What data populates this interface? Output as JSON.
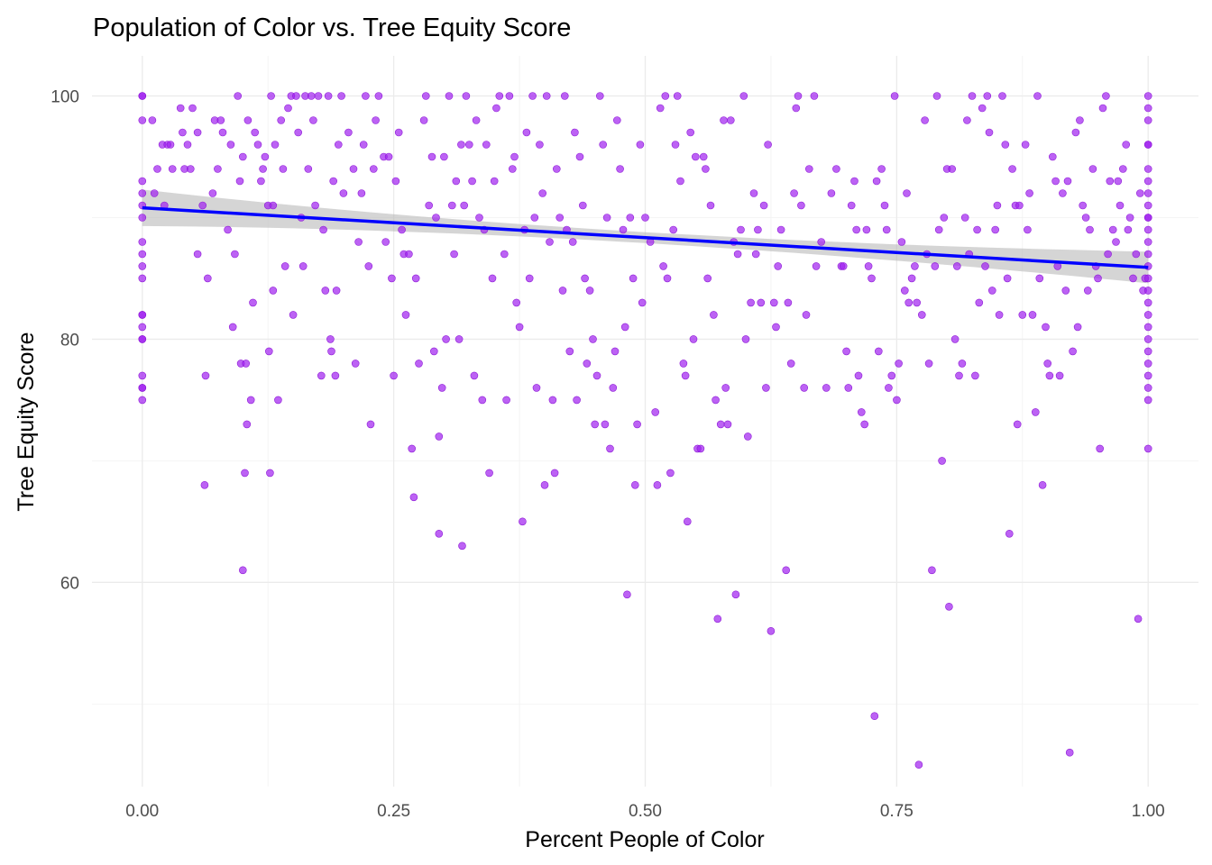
{
  "chart_data": {
    "type": "scatter",
    "title": "Population of Color vs. Tree Equity Score",
    "xlabel": "Percent People of Color",
    "ylabel": "Tree Equity Score",
    "xlim": [
      -0.05,
      1.05
    ],
    "ylim": [
      43.2,
      103.3
    ],
    "x_major_ticks": [
      0.0,
      0.25,
      0.5,
      0.75,
      1.0
    ],
    "x_tick_labels": [
      "0.00",
      "0.25",
      "0.50",
      "0.75",
      "1.00"
    ],
    "x_minor_ticks": [
      0.125,
      0.375,
      0.625,
      0.875
    ],
    "y_major_ticks": [
      60,
      80,
      100
    ],
    "y_tick_labels": [
      "60",
      "80",
      "100"
    ],
    "y_minor_ticks": [
      50,
      70,
      90
    ],
    "grid": true,
    "point_color": "#a020f0",
    "point_opacity": 0.7,
    "trend_line": {
      "method": "linear",
      "color": "#0000ff",
      "x": [
        0.0,
        1.0
      ],
      "y": [
        90.8,
        85.9
      ],
      "ci_lower": [
        89.3,
        84.6
      ],
      "ci_upper": [
        92.3,
        87.2
      ],
      "ci_mid_width": 0.9,
      "ci_color": "#b3b3b3"
    },
    "points": [
      [
        0,
        100
      ],
      [
        0,
        100
      ],
      [
        0,
        98
      ],
      [
        0,
        93
      ],
      [
        0,
        92
      ],
      [
        0,
        91
      ],
      [
        0,
        90
      ],
      [
        0,
        88
      ],
      [
        0,
        87
      ],
      [
        0,
        86
      ],
      [
        0,
        85
      ],
      [
        0,
        82
      ],
      [
        0,
        82
      ],
      [
        0,
        81
      ],
      [
        0,
        80
      ],
      [
        0,
        80
      ],
      [
        0,
        77
      ],
      [
        0,
        76
      ],
      [
        0,
        76
      ],
      [
        0,
        75
      ],
      [
        0.01,
        98
      ],
      [
        0.012,
        92
      ],
      [
        0.015,
        94
      ],
      [
        0.02,
        96
      ],
      [
        0.022,
        91
      ],
      [
        0.025,
        96
      ],
      [
        0.028,
        96
      ],
      [
        0.03,
        94
      ],
      [
        0.038,
        99
      ],
      [
        0.04,
        97
      ],
      [
        0.042,
        94
      ],
      [
        0.045,
        96
      ],
      [
        0.048,
        94
      ],
      [
        0.05,
        99
      ],
      [
        0.055,
        97
      ],
      [
        0.055,
        87
      ],
      [
        0.06,
        91
      ],
      [
        0.062,
        68
      ],
      [
        0.063,
        77
      ],
      [
        0.065,
        85
      ],
      [
        0.07,
        92
      ],
      [
        0.072,
        98
      ],
      [
        0.075,
        94
      ],
      [
        0.078,
        98
      ],
      [
        0.08,
        97
      ],
      [
        0.085,
        89
      ],
      [
        0.088,
        96
      ],
      [
        0.09,
        81
      ],
      [
        0.092,
        87
      ],
      [
        0.095,
        100
      ],
      [
        0.097,
        93
      ],
      [
        0.098,
        78
      ],
      [
        0.1,
        95
      ],
      [
        0.1,
        61
      ],
      [
        0.102,
        69
      ],
      [
        0.103,
        78
      ],
      [
        0.104,
        73
      ],
      [
        0.105,
        98
      ],
      [
        0.108,
        75
      ],
      [
        0.11,
        83
      ],
      [
        0.112,
        97
      ],
      [
        0.115,
        96
      ],
      [
        0.118,
        93
      ],
      [
        0.12,
        94
      ],
      [
        0.122,
        95
      ],
      [
        0.125,
        91
      ],
      [
        0.126,
        79
      ],
      [
        0.127,
        69
      ],
      [
        0.128,
        100
      ],
      [
        0.13,
        84
      ],
      [
        0.13,
        91
      ],
      [
        0.132,
        96
      ],
      [
        0.135,
        75
      ],
      [
        0.138,
        98
      ],
      [
        0.14,
        94
      ],
      [
        0.142,
        86
      ],
      [
        0.145,
        99
      ],
      [
        0.148,
        100
      ],
      [
        0.15,
        82
      ],
      [
        0.153,
        100
      ],
      [
        0.155,
        97
      ],
      [
        0.158,
        90
      ],
      [
        0.16,
        86
      ],
      [
        0.162,
        100
      ],
      [
        0.165,
        94
      ],
      [
        0.168,
        100
      ],
      [
        0.17,
        98
      ],
      [
        0.172,
        91
      ],
      [
        0.175,
        100
      ],
      [
        0.178,
        77
      ],
      [
        0.18,
        89
      ],
      [
        0.182,
        84
      ],
      [
        0.185,
        100
      ],
      [
        0.187,
        80
      ],
      [
        0.188,
        79
      ],
      [
        0.19,
        93
      ],
      [
        0.192,
        77
      ],
      [
        0.193,
        84
      ],
      [
        0.195,
        96
      ],
      [
        0.198,
        100
      ],
      [
        0.2,
        92
      ],
      [
        0.205,
        97
      ],
      [
        0.21,
        94
      ],
      [
        0.212,
        78
      ],
      [
        0.215,
        88
      ],
      [
        0.218,
        92
      ],
      [
        0.22,
        96
      ],
      [
        0.222,
        100
      ],
      [
        0.225,
        86
      ],
      [
        0.227,
        73
      ],
      [
        0.23,
        94
      ],
      [
        0.232,
        98
      ],
      [
        0.235,
        100
      ],
      [
        0.24,
        95
      ],
      [
        0.242,
        88
      ],
      [
        0.245,
        95
      ],
      [
        0.248,
        85
      ],
      [
        0.25,
        77
      ],
      [
        0.252,
        93
      ],
      [
        0.255,
        97
      ],
      [
        0.258,
        89
      ],
      [
        0.26,
        87
      ],
      [
        0.262,
        82
      ],
      [
        0.265,
        87
      ],
      [
        0.268,
        71
      ],
      [
        0.27,
        67
      ],
      [
        0.272,
        85
      ],
      [
        0.275,
        78
      ],
      [
        0.28,
        98
      ],
      [
        0.282,
        100
      ],
      [
        0.285,
        91
      ],
      [
        0.288,
        95
      ],
      [
        0.29,
        79
      ],
      [
        0.292,
        90
      ],
      [
        0.295,
        64
      ],
      [
        0.295,
        72
      ],
      [
        0.298,
        76
      ],
      [
        0.3,
        95
      ],
      [
        0.302,
        80
      ],
      [
        0.305,
        100
      ],
      [
        0.308,
        91
      ],
      [
        0.31,
        87
      ],
      [
        0.312,
        93
      ],
      [
        0.315,
        80
      ],
      [
        0.317,
        96
      ],
      [
        0.318,
        63
      ],
      [
        0.32,
        91
      ],
      [
        0.322,
        100
      ],
      [
        0.325,
        96
      ],
      [
        0.328,
        93
      ],
      [
        0.33,
        77
      ],
      [
        0.332,
        98
      ],
      [
        0.335,
        90
      ],
      [
        0.338,
        75
      ],
      [
        0.34,
        89
      ],
      [
        0.342,
        96
      ],
      [
        0.345,
        69
      ],
      [
        0.348,
        85
      ],
      [
        0.35,
        93
      ],
      [
        0.352,
        99
      ],
      [
        0.355,
        100
      ],
      [
        0.36,
        87
      ],
      [
        0.362,
        75
      ],
      [
        0.365,
        100
      ],
      [
        0.368,
        94
      ],
      [
        0.37,
        95
      ],
      [
        0.372,
        83
      ],
      [
        0.375,
        81
      ],
      [
        0.378,
        65
      ],
      [
        0.38,
        89
      ],
      [
        0.382,
        97
      ],
      [
        0.385,
        85
      ],
      [
        0.388,
        100
      ],
      [
        0.39,
        90
      ],
      [
        0.392,
        76
      ],
      [
        0.395,
        96
      ],
      [
        0.398,
        92
      ],
      [
        0.4,
        68
      ],
      [
        0.402,
        100
      ],
      [
        0.405,
        88
      ],
      [
        0.408,
        75
      ],
      [
        0.41,
        69
      ],
      [
        0.412,
        94
      ],
      [
        0.415,
        90
      ],
      [
        0.418,
        84
      ],
      [
        0.42,
        100
      ],
      [
        0.422,
        89
      ],
      [
        0.425,
        79
      ],
      [
        0.428,
        88
      ],
      [
        0.43,
        97
      ],
      [
        0.432,
        75
      ],
      [
        0.435,
        95
      ],
      [
        0.438,
        91
      ],
      [
        0.44,
        85
      ],
      [
        0.442,
        78
      ],
      [
        0.445,
        84
      ],
      [
        0.448,
        80
      ],
      [
        0.45,
        73
      ],
      [
        0.452,
        77
      ],
      [
        0.455,
        100
      ],
      [
        0.458,
        96
      ],
      [
        0.46,
        73
      ],
      [
        0.462,
        90
      ],
      [
        0.465,
        71
      ],
      [
        0.468,
        76
      ],
      [
        0.47,
        79
      ],
      [
        0.472,
        98
      ],
      [
        0.475,
        94
      ],
      [
        0.478,
        89
      ],
      [
        0.48,
        81
      ],
      [
        0.482,
        59
      ],
      [
        0.485,
        90
      ],
      [
        0.488,
        85
      ],
      [
        0.49,
        68
      ],
      [
        0.492,
        73
      ],
      [
        0.495,
        96
      ],
      [
        0.497,
        83
      ],
      [
        0.5,
        90
      ],
      [
        0.505,
        88
      ],
      [
        0.51,
        74
      ],
      [
        0.512,
        68
      ],
      [
        0.515,
        99
      ],
      [
        0.518,
        86
      ],
      [
        0.52,
        100
      ],
      [
        0.522,
        85
      ],
      [
        0.525,
        69
      ],
      [
        0.528,
        89
      ],
      [
        0.53,
        96
      ],
      [
        0.532,
        100
      ],
      [
        0.535,
        93
      ],
      [
        0.538,
        78
      ],
      [
        0.54,
        77
      ],
      [
        0.542,
        65
      ],
      [
        0.545,
        97
      ],
      [
        0.548,
        80
      ],
      [
        0.55,
        95
      ],
      [
        0.552,
        71
      ],
      [
        0.555,
        71
      ],
      [
        0.558,
        95
      ],
      [
        0.56,
        94
      ],
      [
        0.562,
        85
      ],
      [
        0.565,
        91
      ],
      [
        0.568,
        82
      ],
      [
        0.57,
        75
      ],
      [
        0.572,
        57
      ],
      [
        0.575,
        73
      ],
      [
        0.578,
        98
      ],
      [
        0.58,
        76
      ],
      [
        0.582,
        73
      ],
      [
        0.585,
        98
      ],
      [
        0.588,
        88
      ],
      [
        0.59,
        59
      ],
      [
        0.592,
        87
      ],
      [
        0.595,
        89
      ],
      [
        0.598,
        100
      ],
      [
        0.6,
        80
      ],
      [
        0.602,
        72
      ],
      [
        0.605,
        83
      ],
      [
        0.608,
        92
      ],
      [
        0.61,
        87
      ],
      [
        0.612,
        89
      ],
      [
        0.615,
        83
      ],
      [
        0.618,
        91
      ],
      [
        0.62,
        76
      ],
      [
        0.622,
        96
      ],
      [
        0.625,
        56
      ],
      [
        0.628,
        83
      ],
      [
        0.63,
        81
      ],
      [
        0.632,
        86
      ],
      [
        0.635,
        89
      ],
      [
        0.64,
        61
      ],
      [
        0.642,
        83
      ],
      [
        0.645,
        78
      ],
      [
        0.648,
        92
      ],
      [
        0.65,
        99
      ],
      [
        0.652,
        100
      ],
      [
        0.655,
        91
      ],
      [
        0.658,
        76
      ],
      [
        0.66,
        82
      ],
      [
        0.663,
        94
      ],
      [
        0.668,
        100
      ],
      [
        0.67,
        86
      ],
      [
        0.675,
        88
      ],
      [
        0.68,
        76
      ],
      [
        0.685,
        92
      ],
      [
        0.69,
        94
      ],
      [
        0.695,
        86
      ],
      [
        0.697,
        86
      ],
      [
        0.7,
        79
      ],
      [
        0.702,
        76
      ],
      [
        0.705,
        91
      ],
      [
        0.708,
        93
      ],
      [
        0.71,
        89
      ],
      [
        0.712,
        77
      ],
      [
        0.715,
        74
      ],
      [
        0.718,
        73
      ],
      [
        0.72,
        89
      ],
      [
        0.722,
        86
      ],
      [
        0.725,
        85
      ],
      [
        0.728,
        49
      ],
      [
        0.73,
        93
      ],
      [
        0.732,
        79
      ],
      [
        0.735,
        94
      ],
      [
        0.738,
        91
      ],
      [
        0.74,
        89
      ],
      [
        0.742,
        76
      ],
      [
        0.745,
        77
      ],
      [
        0.748,
        100
      ],
      [
        0.75,
        75
      ],
      [
        0.752,
        78
      ],
      [
        0.755,
        88
      ],
      [
        0.758,
        84
      ],
      [
        0.76,
        92
      ],
      [
        0.762,
        83
      ],
      [
        0.765,
        85
      ],
      [
        0.768,
        86
      ],
      [
        0.77,
        83
      ],
      [
        0.772,
        45
      ],
      [
        0.775,
        82
      ],
      [
        0.778,
        98
      ],
      [
        0.78,
        87
      ],
      [
        0.782,
        78
      ],
      [
        0.785,
        61
      ],
      [
        0.788,
        86
      ],
      [
        0.79,
        100
      ],
      [
        0.792,
        89
      ],
      [
        0.795,
        70
      ],
      [
        0.797,
        90
      ],
      [
        0.8,
        94
      ],
      [
        0.802,
        58
      ],
      [
        0.805,
        94
      ],
      [
        0.808,
        80
      ],
      [
        0.81,
        86
      ],
      [
        0.812,
        77
      ],
      [
        0.815,
        78
      ],
      [
        0.818,
        90
      ],
      [
        0.82,
        98
      ],
      [
        0.822,
        87
      ],
      [
        0.825,
        100
      ],
      [
        0.828,
        77
      ],
      [
        0.83,
        89
      ],
      [
        0.832,
        83
      ],
      [
        0.835,
        99
      ],
      [
        0.838,
        86
      ],
      [
        0.84,
        100
      ],
      [
        0.842,
        97
      ],
      [
        0.845,
        84
      ],
      [
        0.848,
        89
      ],
      [
        0.85,
        91
      ],
      [
        0.852,
        82
      ],
      [
        0.855,
        100
      ],
      [
        0.858,
        96
      ],
      [
        0.86,
        85
      ],
      [
        0.862,
        64
      ],
      [
        0.865,
        94
      ],
      [
        0.868,
        91
      ],
      [
        0.87,
        73
      ],
      [
        0.872,
        91
      ],
      [
        0.875,
        82
      ],
      [
        0.878,
        96
      ],
      [
        0.88,
        89
      ],
      [
        0.882,
        92
      ],
      [
        0.885,
        82
      ],
      [
        0.888,
        74
      ],
      [
        0.89,
        100
      ],
      [
        0.892,
        85
      ],
      [
        0.895,
        68
      ],
      [
        0.898,
        81
      ],
      [
        0.9,
        78
      ],
      [
        0.902,
        77
      ],
      [
        0.905,
        95
      ],
      [
        0.908,
        93
      ],
      [
        0.91,
        86
      ],
      [
        0.912,
        77
      ],
      [
        0.915,
        92
      ],
      [
        0.918,
        84
      ],
      [
        0.92,
        93
      ],
      [
        0.922,
        46
      ],
      [
        0.925,
        79
      ],
      [
        0.928,
        97
      ],
      [
        0.93,
        81
      ],
      [
        0.932,
        98
      ],
      [
        0.935,
        91
      ],
      [
        0.938,
        90
      ],
      [
        0.94,
        84
      ],
      [
        0.942,
        89
      ],
      [
        0.945,
        94
      ],
      [
        0.948,
        86
      ],
      [
        0.95,
        85
      ],
      [
        0.952,
        71
      ],
      [
        0.955,
        99
      ],
      [
        0.958,
        100
      ],
      [
        0.96,
        87
      ],
      [
        0.962,
        93
      ],
      [
        0.965,
        89
      ],
      [
        0.968,
        88
      ],
      [
        0.97,
        93
      ],
      [
        0.972,
        91
      ],
      [
        0.975,
        94
      ],
      [
        0.978,
        96
      ],
      [
        0.98,
        89
      ],
      [
        0.982,
        90
      ],
      [
        0.985,
        85
      ],
      [
        0.988,
        87
      ],
      [
        0.99,
        57
      ],
      [
        0.992,
        92
      ],
      [
        0.995,
        84
      ],
      [
        0.997,
        85
      ],
      [
        1,
        100
      ],
      [
        1,
        99
      ],
      [
        1,
        98
      ],
      [
        1,
        96
      ],
      [
        1,
        96
      ],
      [
        1,
        94
      ],
      [
        1,
        93
      ],
      [
        1,
        92
      ],
      [
        1,
        91
      ],
      [
        1,
        90
      ],
      [
        1,
        90
      ],
      [
        1,
        89
      ],
      [
        1,
        88
      ],
      [
        1,
        87
      ],
      [
        1,
        86
      ],
      [
        1,
        85
      ],
      [
        1,
        84
      ],
      [
        1,
        83
      ],
      [
        1,
        82
      ],
      [
        1,
        81
      ],
      [
        1,
        80
      ],
      [
        1,
        79
      ],
      [
        1,
        78
      ],
      [
        1,
        77
      ],
      [
        1,
        76
      ],
      [
        1,
        75
      ],
      [
        1,
        71
      ]
    ]
  }
}
